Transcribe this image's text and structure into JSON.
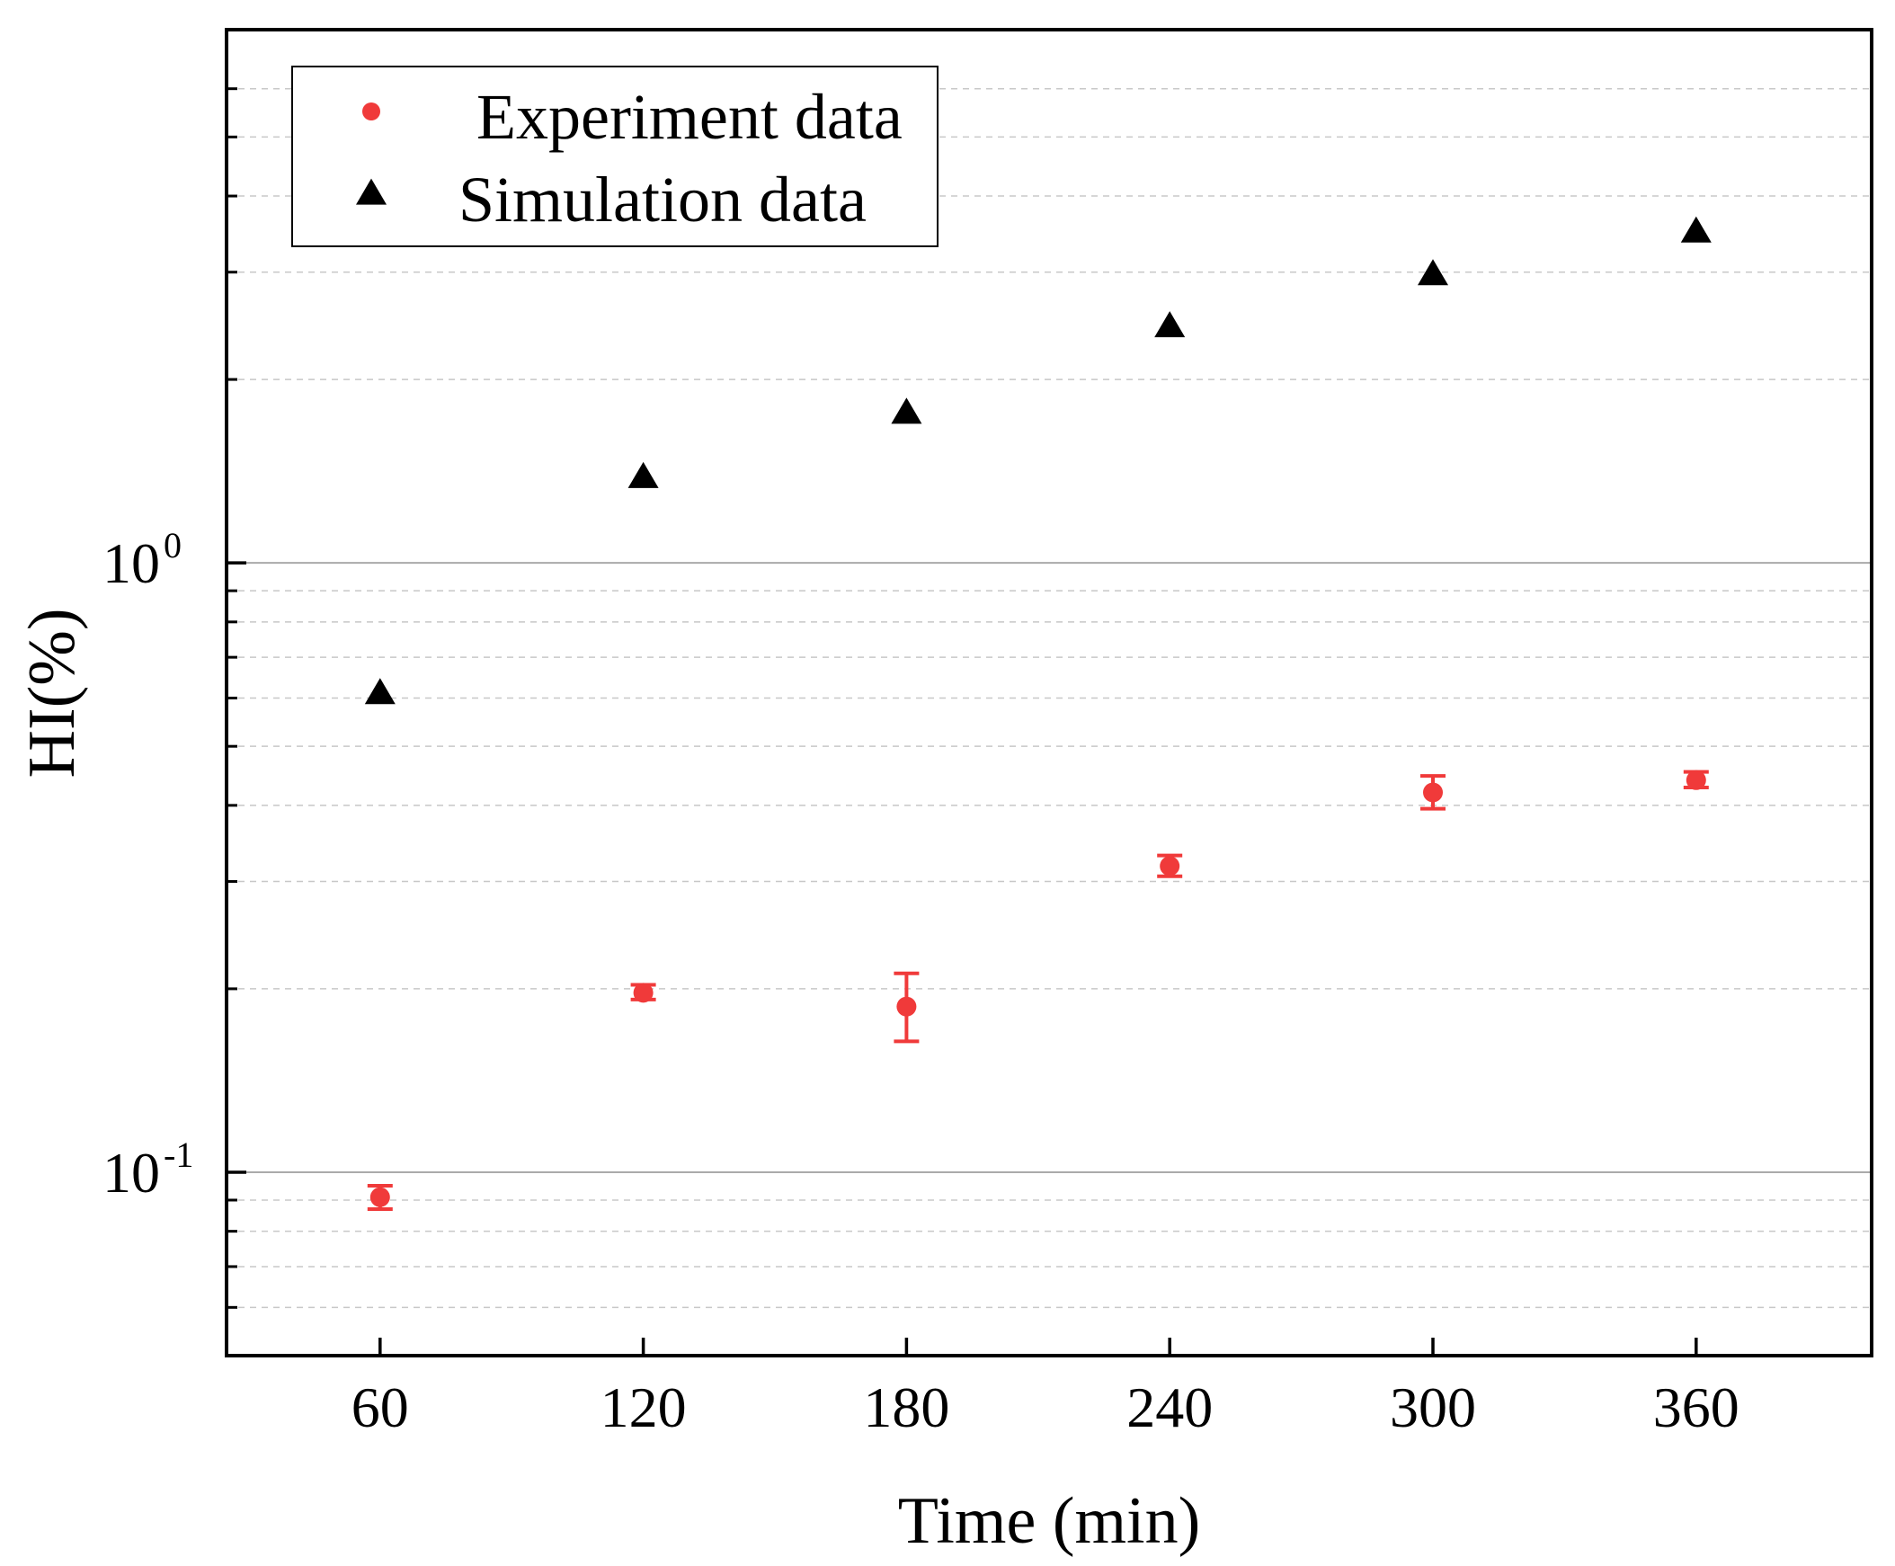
{
  "chart_data": {
    "type": "scatter",
    "title": "",
    "xlabel": "Time (min)",
    "ylabel": "HI(%)",
    "x_ticks": [
      60,
      120,
      180,
      240,
      300,
      360
    ],
    "x_tick_labels": [
      "60",
      "120",
      "180",
      "240",
      "300",
      "360"
    ],
    "xlim": [
      25,
      400
    ],
    "y_scale": "log",
    "ylim": [
      0.05,
      7.5
    ],
    "y_major_ticks": [
      {
        "value": 0.1,
        "base": "10",
        "exp": "-1"
      },
      {
        "value": 1,
        "base": "10",
        "exp": "0"
      }
    ],
    "y_minor_ticks": [
      0.06,
      0.07,
      0.08,
      0.09,
      0.2,
      0.3,
      0.4,
      0.5,
      0.6,
      0.7,
      0.8,
      0.9,
      2,
      3,
      4,
      5,
      6
    ],
    "grid": {
      "major": "solid",
      "minor": "dashed"
    },
    "legend_position": "top-left",
    "series": [
      {
        "name": "Experiment data",
        "marker": "circle",
        "color": "#f03a3a",
        "points": [
          {
            "x": 60,
            "y": 0.091,
            "err_low": 0.087,
            "err_high": 0.095
          },
          {
            "x": 120,
            "y": 0.197,
            "err_low": 0.192,
            "err_high": 0.203
          },
          {
            "x": 180,
            "y": 0.187,
            "err_low": 0.164,
            "err_high": 0.212
          },
          {
            "x": 240,
            "y": 0.318,
            "err_low": 0.306,
            "err_high": 0.331
          },
          {
            "x": 300,
            "y": 0.42,
            "err_low": 0.395,
            "err_high": 0.447
          },
          {
            "x": 360,
            "y": 0.44,
            "err_low": 0.428,
            "err_high": 0.454
          }
        ]
      },
      {
        "name": "Simulation data",
        "marker": "triangle",
        "color": "#000000",
        "points": [
          {
            "x": 60,
            "y": 0.61
          },
          {
            "x": 120,
            "y": 1.38
          },
          {
            "x": 180,
            "y": 1.76
          },
          {
            "x": 240,
            "y": 2.44
          },
          {
            "x": 300,
            "y": 2.97
          },
          {
            "x": 360,
            "y": 3.49
          }
        ]
      }
    ]
  },
  "colors": {
    "experiment": "#f03a3a",
    "simulation": "#000000",
    "major_grid": "#aaaaaa",
    "minor_grid": "#c8c8c8",
    "frame": "#000000"
  }
}
